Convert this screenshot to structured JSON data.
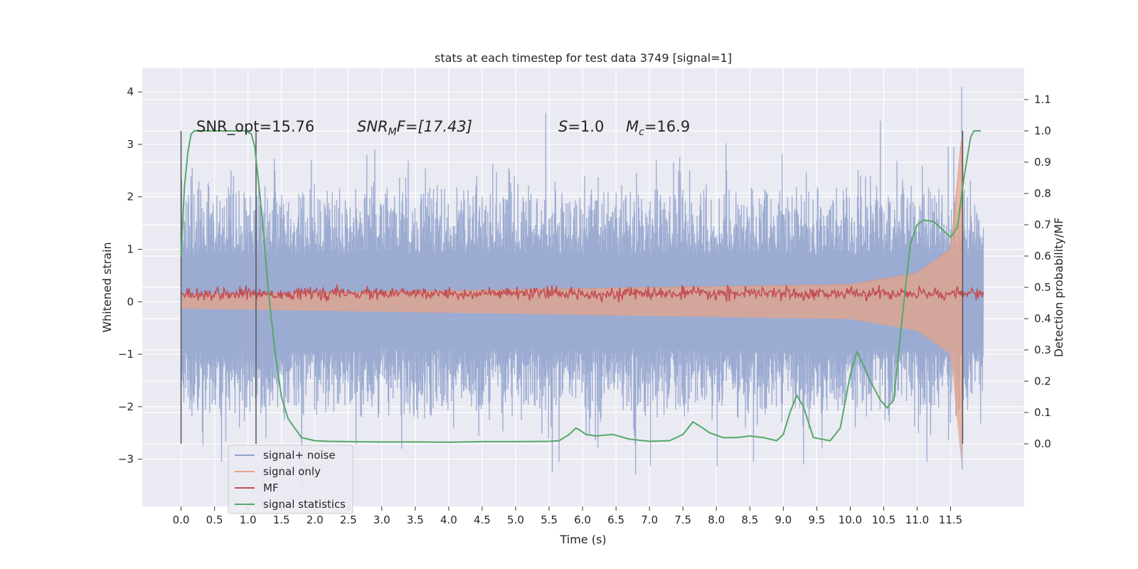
{
  "chart_data": {
    "type": "line",
    "title": "stats at each timestep for test data 3749 [signal=1]",
    "xlabel": "Time (s)",
    "ylabel": "Whitened strain",
    "y2label": "Detection probability/MF",
    "xlim": [
      -0.58,
      12.6
    ],
    "ylim": [
      -3.9,
      4.45
    ],
    "y2lim": [
      -0.2,
      1.2
    ],
    "x_ticks": [
      0.0,
      0.5,
      1.0,
      1.5,
      2.0,
      2.5,
      3.0,
      3.5,
      4.0,
      4.5,
      5.0,
      5.5,
      6.0,
      6.5,
      7.0,
      7.5,
      8.0,
      8.5,
      9.0,
      9.5,
      10.0,
      10.5,
      11.0,
      11.5
    ],
    "x_tick_labels": [
      "0.0",
      "0.5",
      "1.0",
      "1.5",
      "2.0",
      "2.5",
      "3.0",
      "3.5",
      "4.0",
      "4.5",
      "5.0",
      "5.5",
      "6.0",
      "6.5",
      "7.0",
      "7.5",
      "8.0",
      "8.5",
      "9.0",
      "9.5",
      "10.0",
      "10.5",
      "11.0",
      "11.5"
    ],
    "y_ticks": [
      -3,
      -2,
      -1,
      0,
      1,
      2,
      3,
      4
    ],
    "y_tick_labels": [
      "−3",
      "−2",
      "−1",
      "0",
      "1",
      "2",
      "3",
      "4"
    ],
    "y2_ticks": [
      0.0,
      0.1,
      0.2,
      0.3,
      0.4,
      0.5,
      0.6,
      0.7,
      0.8,
      0.9,
      1.0,
      1.1
    ],
    "y2_tick_labels": [
      "0.0",
      "0.1",
      "0.2",
      "0.3",
      "0.4",
      "0.5",
      "0.6",
      "0.7",
      "0.8",
      "0.9",
      "1.0",
      "1.1"
    ],
    "grid": true,
    "legend_position": "bottom-left",
    "annotations": {
      "snr_opt": "SNR_opt=15.76",
      "snr_mf_main": "SNR",
      "snr_mf_sub": "M",
      "snr_mf_rest": "F=[17.43]",
      "s_var": "S",
      "s_rest": "=1.0",
      "mc_var": "M",
      "mc_sub": "c",
      "mc_rest": "=16.9"
    },
    "series": [
      {
        "name": "signal+ noise",
        "color": "#8da0cb",
        "x_range": [
          0.0,
          11.99
        ],
        "envelope_upper_peaks": [
          [
            0.0,
            1.95
          ],
          [
            0.25,
            2.15
          ],
          [
            0.78,
            2.4
          ],
          [
            1.25,
            2.2
          ],
          [
            1.95,
            2.7
          ],
          [
            2.9,
            2.9
          ],
          [
            4.9,
            2.55
          ],
          [
            5.45,
            3.6
          ],
          [
            7.1,
            2.7
          ],
          [
            7.6,
            2.5
          ],
          [
            10.3,
            2.4
          ],
          [
            10.45,
            3.45
          ],
          [
            11.55,
            2.95
          ],
          [
            11.67,
            4.1
          ]
        ],
        "envelope_lower_peaks": [
          [
            0.0,
            -1.95
          ],
          [
            0.6,
            -3.05
          ],
          [
            1.8,
            -3.55
          ],
          [
            3.3,
            -2.8
          ],
          [
            5.55,
            -3.25
          ],
          [
            5.65,
            -3.05
          ],
          [
            8.55,
            -3.05
          ],
          [
            9.3,
            -3.1
          ],
          [
            11.15,
            -3.05
          ],
          [
            11.67,
            -3.2
          ]
        ]
      },
      {
        "name": "signal only",
        "color": "#e5a48a",
        "x_range": [
          0.0,
          11.99
        ],
        "description_points": [
          [
            0.0,
            0.13
          ],
          [
            10.0,
            0.33
          ],
          [
            11.0,
            0.55
          ],
          [
            11.5,
            1.0
          ],
          [
            11.67,
            3.2
          ],
          [
            11.7,
            0.0
          ]
        ]
      },
      {
        "name": "MF",
        "color": "#c44e52",
        "x_range": [
          0.0,
          11.99
        ],
        "level_y2": 0.48,
        "amplitude_y2": 0.012
      },
      {
        "name": "signal statistics",
        "color": "#55a868",
        "axis": "right",
        "x": [
          0.0,
          0.05,
          0.1,
          0.15,
          0.2,
          0.3,
          0.5,
          0.8,
          0.95,
          1.05,
          1.1,
          1.2,
          1.3,
          1.4,
          1.5,
          1.6,
          1.8,
          2.0,
          2.2,
          2.5,
          3.0,
          3.5,
          4.0,
          4.5,
          5.0,
          5.5,
          5.65,
          5.8,
          5.9,
          5.95,
          6.05,
          6.2,
          6.45,
          6.7,
          7.0,
          7.3,
          7.5,
          7.65,
          7.8,
          7.9,
          8.1,
          8.3,
          8.5,
          8.7,
          8.9,
          9.0,
          9.1,
          9.2,
          9.3,
          9.45,
          9.7,
          9.85,
          10.0,
          10.1,
          10.2,
          10.3,
          10.45,
          10.55,
          10.65,
          10.8,
          10.9,
          11.0,
          11.1,
          11.25,
          11.4,
          11.5,
          11.6,
          11.7,
          11.8,
          11.85,
          11.9,
          11.95
        ],
        "y": [
          0.6,
          0.82,
          0.93,
          0.99,
          1.0,
          1.0,
          1.0,
          1.0,
          1.0,
          0.99,
          0.95,
          0.75,
          0.5,
          0.3,
          0.15,
          0.08,
          0.02,
          0.01,
          0.008,
          0.007,
          0.006,
          0.006,
          0.005,
          0.007,
          0.007,
          0.008,
          0.01,
          0.03,
          0.05,
          0.045,
          0.03,
          0.025,
          0.03,
          0.015,
          0.008,
          0.01,
          0.03,
          0.07,
          0.05,
          0.035,
          0.02,
          0.02,
          0.025,
          0.02,
          0.01,
          0.03,
          0.1,
          0.155,
          0.12,
          0.02,
          0.01,
          0.05,
          0.22,
          0.295,
          0.25,
          0.2,
          0.14,
          0.115,
          0.14,
          0.45,
          0.64,
          0.7,
          0.715,
          0.71,
          0.68,
          0.66,
          0.69,
          0.85,
          0.98,
          1.0,
          1.0,
          1.0
        ]
      }
    ],
    "vertical_lines": [
      0.0,
      1.12,
      11.68
    ]
  }
}
